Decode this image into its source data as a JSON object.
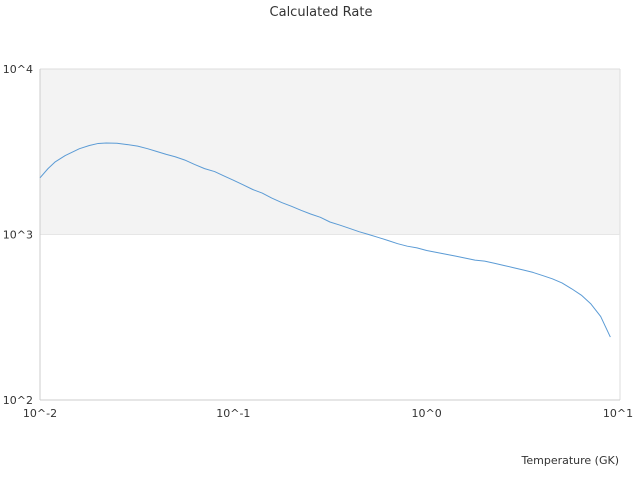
{
  "chart_data": {
    "type": "line",
    "title": "Calculated Rate",
    "xlabel": "Temperature (GK)",
    "ylabel": "",
    "xscale": "log",
    "yscale": "log",
    "xlim": [
      0.01,
      10
    ],
    "ylim": [
      100,
      10000
    ],
    "x_ticks": [
      {
        "value": 0.01,
        "label": "10^-2"
      },
      {
        "value": 0.1,
        "label": "10^-1"
      },
      {
        "value": 1,
        "label": "10^0"
      },
      {
        "value": 10,
        "label": "10^1"
      }
    ],
    "y_ticks": [
      {
        "value": 100,
        "label": "10^2"
      },
      {
        "value": 1000,
        "label": "10^3"
      },
      {
        "value": 10000,
        "label": "10^4"
      }
    ],
    "shaded_band": {
      "y_from": 1000,
      "y_to": 10000,
      "color": "#f3f3f3"
    },
    "grid": false,
    "legend": "none",
    "line_color": "#5b9bd5",
    "series": [
      {
        "x": [
          0.01,
          0.011,
          0.012,
          0.0135,
          0.016,
          0.018,
          0.02,
          0.022,
          0.025,
          0.028,
          0.032,
          0.036,
          0.04,
          0.045,
          0.05,
          0.056,
          0.063,
          0.071,
          0.08,
          0.09,
          0.1,
          0.112,
          0.126,
          0.141,
          0.158,
          0.178,
          0.2,
          0.224,
          0.251,
          0.282,
          0.316,
          0.355,
          0.398,
          0.447,
          0.501,
          0.562,
          0.631,
          0.708,
          0.794,
          0.891,
          1.0,
          1.122,
          1.259,
          1.413,
          1.585,
          1.778,
          1.995,
          2.239,
          2.512,
          2.818,
          3.162,
          3.548,
          3.981,
          4.467,
          5.012,
          5.623,
          6.31,
          7.079,
          7.943,
          8.913
        ],
        "y": [
          2200,
          2500,
          2750,
          3000,
          3300,
          3450,
          3550,
          3570,
          3560,
          3500,
          3420,
          3300,
          3180,
          3050,
          2950,
          2820,
          2650,
          2500,
          2400,
          2250,
          2130,
          2000,
          1870,
          1780,
          1660,
          1560,
          1480,
          1400,
          1330,
          1270,
          1190,
          1140,
          1090,
          1040,
          1000,
          960,
          920,
          880,
          850,
          830,
          800,
          780,
          760,
          740,
          720,
          700,
          690,
          670,
          650,
          630,
          610,
          590,
          565,
          540,
          510,
          470,
          430,
          380,
          320,
          240
        ]
      }
    ]
  }
}
